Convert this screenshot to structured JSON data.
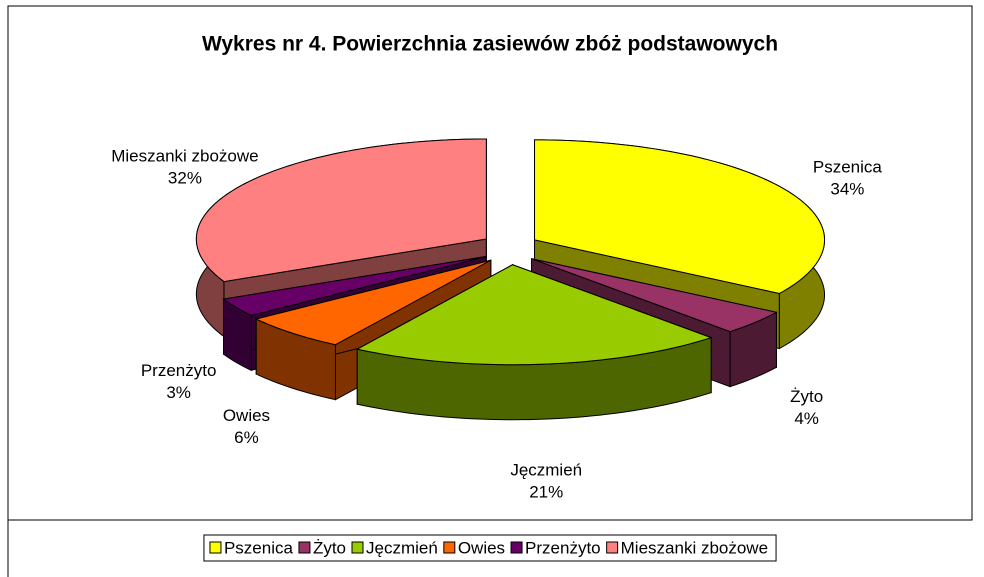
{
  "chart_data": {
    "type": "pie3d",
    "title": "Wykres nr 4. Powierzchnia zasiewów zbóż podstawowych",
    "categories": [
      "Pszenica",
      "Żyto",
      "Jęczmień",
      "Owies",
      "Przenżyto",
      "Mieszanki zbożowe"
    ],
    "values": [
      34,
      4,
      21,
      6,
      3,
      32
    ],
    "value_labels": [
      "34%",
      "4%",
      "21%",
      "6%",
      "3%",
      "32%"
    ],
    "colors": [
      "#ffff00",
      "#993366",
      "#99cc00",
      "#ff6600",
      "#660066",
      "#ff8080"
    ],
    "legend": "bottom"
  }
}
